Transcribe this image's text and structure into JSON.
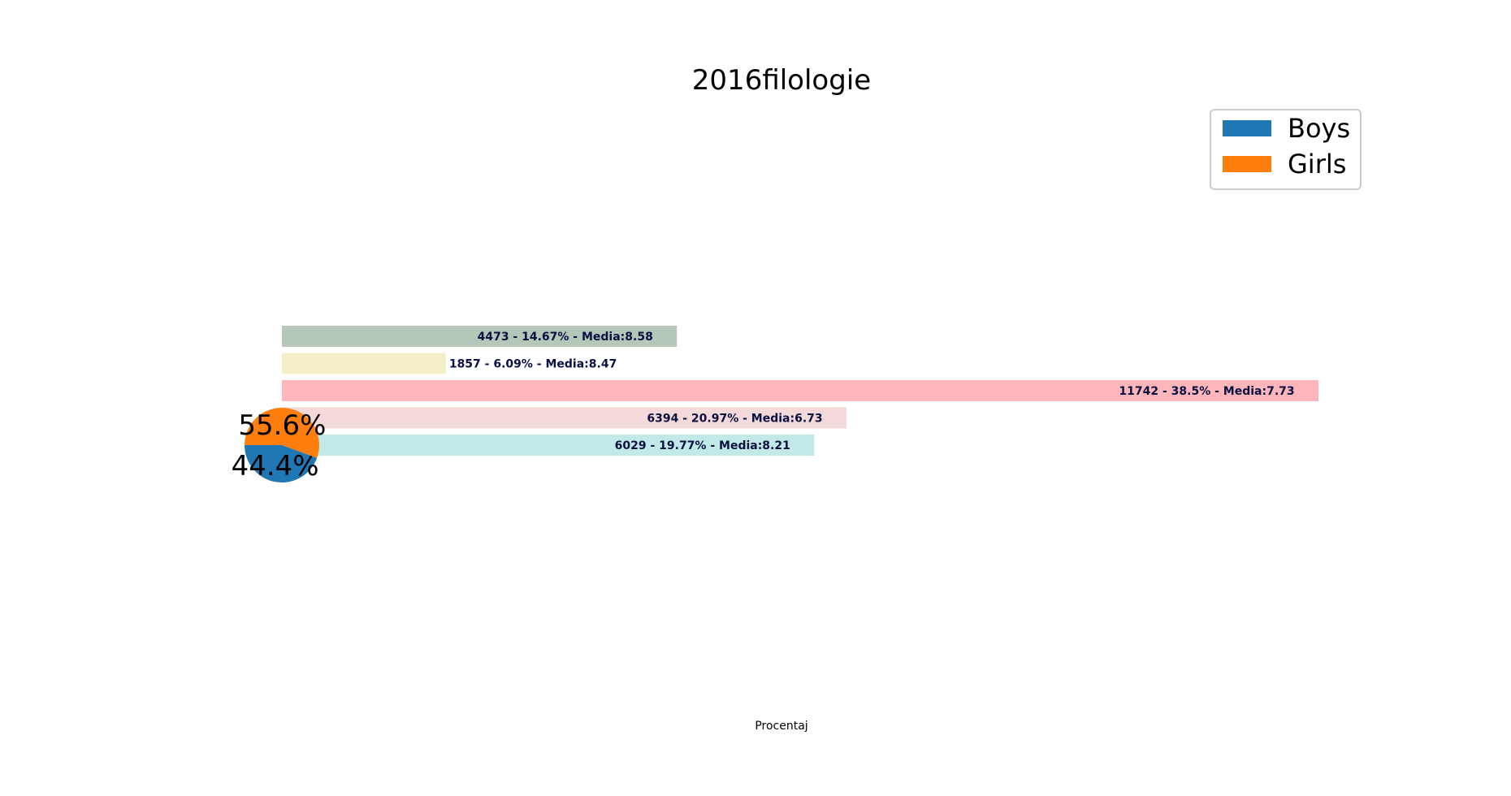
{
  "chart_data": [
    {
      "type": "bar",
      "orientation": "horizontal",
      "title": "2016filologie",
      "xlabel": "Procentaj",
      "ylabel": "",
      "xlim": [
        0,
        40
      ],
      "grid": false,
      "axes_visible": false,
      "bars": [
        {
          "count": 6029,
          "percent": 19.77,
          "media": 8.21,
          "label": "6029 - 19.77% - Media:8.21",
          "color": "#c0e9e8"
        },
        {
          "count": 6394,
          "percent": 20.97,
          "media": 6.73,
          "label": "6394 - 20.97% - Media:6.73",
          "color": "#f4d9da"
        },
        {
          "count": 11742,
          "percent": 38.5,
          "media": 7.73,
          "label": "11742 - 38.5% - Media:7.73",
          "color": "#feb6bb"
        },
        {
          "count": 1857,
          "percent": 6.09,
          "media": 8.47,
          "label": "1857 - 6.09% - Media:8.47",
          "color": "#f5efc9"
        },
        {
          "count": 4473,
          "percent": 14.67,
          "media": 8.58,
          "label": "4473 - 14.67% - Media:8.58",
          "color": "#b4c7b9"
        }
      ]
    },
    {
      "type": "pie",
      "slices": [
        {
          "name": "Boys",
          "percent": 44.4,
          "label": "44.4%",
          "color": "#1f77b4"
        },
        {
          "name": "Girls",
          "percent": 55.6,
          "label": "55.6%",
          "color": "#ff7f0e"
        }
      ],
      "legend": {
        "placement": "top-right",
        "entries": [
          {
            "label": "Boys",
            "color": "#1f77b4"
          },
          {
            "label": "Girls",
            "color": "#ff7f0e"
          }
        ]
      }
    }
  ]
}
